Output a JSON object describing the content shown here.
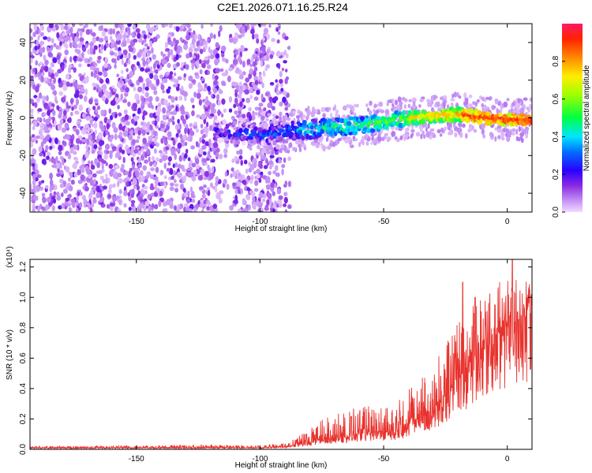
{
  "title": "C2E1.2026.071.16.25.R24",
  "chart_data": [
    {
      "type": "heatmap",
      "xlabel": "Height of straight line (km)",
      "ylabel": "Frequency (Hz)",
      "xlim": [
        -193,
        10
      ],
      "ylim": [
        -50,
        50
      ],
      "xticks": [
        -150,
        -100,
        -50,
        0
      ],
      "yticks": [
        -40,
        -20,
        0,
        20,
        40
      ],
      "colorbar": {
        "label": "Normalized spectral amplitude",
        "range": [
          0,
          1
        ],
        "ticks": [
          "0.0",
          "0.2",
          "0.4",
          "0.6",
          "0.8"
        ],
        "tick_values": [
          0.0,
          0.2,
          0.4,
          0.6,
          0.8
        ]
      },
      "signal_ridge": [
        {
          "x": -118,
          "y": -7
        },
        {
          "x": -100,
          "y": -9
        },
        {
          "x": -80,
          "y": -6
        },
        {
          "x": -60,
          "y": -4
        },
        {
          "x": -40,
          "y": 0
        },
        {
          "x": -20,
          "y": 2
        },
        {
          "x": -10,
          "y": 0
        },
        {
          "x": 0,
          "y": -1
        },
        {
          "x": 10,
          "y": -1
        }
      ],
      "noise_region_x": [
        -193,
        -88
      ]
    },
    {
      "type": "line",
      "xlabel": "Height of straight line (km)",
      "ylabel": "SNR (10 * v/v)",
      "y_multiplier": "(x10⁴)",
      "xlim": [
        -193,
        10
      ],
      "ylim": [
        0,
        1.25
      ],
      "xticks": [
        -150,
        -100,
        -50,
        0
      ],
      "yticks": [
        0.0,
        0.2,
        0.4,
        0.6,
        0.8,
        1.0,
        1.2
      ],
      "ytick_labels": [
        "0.0",
        "0.2",
        "0.4",
        "0.6",
        "0.8",
        "1.0",
        "1.2"
      ],
      "series": [
        {
          "name": "SNR",
          "color": "#e8322d",
          "envelope": [
            {
              "x": -193,
              "base": 0.01,
              "amp": 0.01
            },
            {
              "x": -115,
              "base": 0.01,
              "amp": 0.02
            },
            {
              "x": -100,
              "base": 0.01,
              "amp": 0.015
            },
            {
              "x": -88,
              "base": 0.02,
              "amp": 0.03
            },
            {
              "x": -75,
              "base": 0.06,
              "amp": 0.14
            },
            {
              "x": -60,
              "base": 0.1,
              "amp": 0.18
            },
            {
              "x": -45,
              "base": 0.12,
              "amp": 0.2
            },
            {
              "x": -30,
              "base": 0.25,
              "amp": 0.3
            },
            {
              "x": -20,
              "base": 0.45,
              "amp": 0.4
            },
            {
              "x": -10,
              "base": 0.65,
              "amp": 0.35
            },
            {
              "x": 0,
              "base": 0.8,
              "amp": 0.35
            },
            {
              "x": 10,
              "base": 0.9,
              "amp": 0.2
            }
          ],
          "peaks": [
            {
              "x": -18,
              "y": 1.1
            },
            {
              "x": -13,
              "y": 1.0
            },
            {
              "x": -5,
              "y": 0.95
            },
            {
              "x": 0,
              "y": 0.75
            },
            {
              "x": 2,
              "y": 1.27
            },
            {
              "x": 9,
              "y": 1.05
            }
          ]
        }
      ]
    }
  ]
}
